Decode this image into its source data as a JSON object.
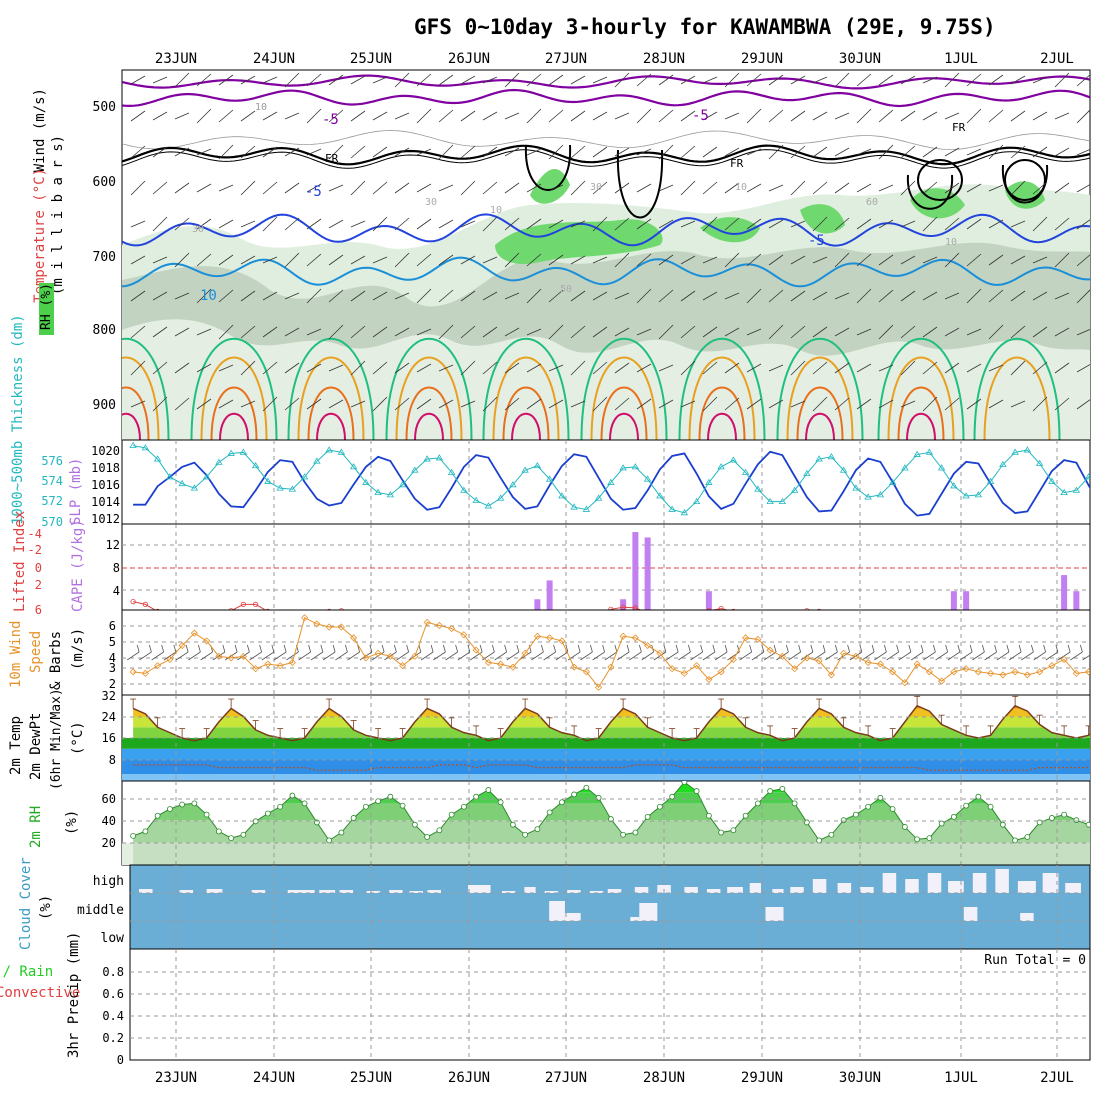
{
  "title": "GFS 0~10day 3-hourly for KAWAMBWA (29E, 9.75S)",
  "dates": [
    "23JUN",
    "24JUN",
    "25JUN",
    "26JUN",
    "27JUN",
    "28JUN",
    "29JUN",
    "30JUN",
    "1JUL",
    "2JUL"
  ],
  "panels": {
    "upper": {
      "ylabel_mb": "(m i l l i b a r s)",
      "legend_temp": "Temperature (°C)",
      "legend_wind": "Wind (m/s)",
      "legend_rh": "RH (%)",
      "ticks": [
        "500",
        "600",
        "700",
        "800",
        "900"
      ],
      "contour_labels": [
        "-5",
        "-5",
        "-5",
        "-5",
        "10",
        "10",
        "FR",
        "FR",
        "FR",
        "30",
        "30",
        "10",
        "50",
        "60",
        "10",
        "30",
        "10"
      ]
    },
    "thickness": {
      "label_thick": "1000~500mb Thickness (dm)",
      "label_slp": "SLP (mb)",
      "ticks_left": [
        "576",
        "574",
        "572",
        "570"
      ],
      "ticks_right": [
        "1020",
        "1018",
        "1016",
        "1014",
        "1012"
      ]
    },
    "cape": {
      "label_li": "Lifted Index",
      "label_cape": "CAPE (J/kg)",
      "ticks_left": [
        "-4",
        "-2",
        "0",
        "2",
        "4",
        "6"
      ],
      "ticks_right": [
        "12",
        "8",
        "4"
      ]
    },
    "wind10": {
      "label_a": "10m Wind",
      "label_b": "Speed",
      "label_c": "& Barbs",
      "label_units": "(m/s)",
      "ticks": [
        "6",
        "5",
        "4",
        "3",
        "2"
      ]
    },
    "temp2m": {
      "label_a": "2m Temp",
      "label_b": "2m DewPt",
      "label_c": "(6hr Min/Max)",
      "label_units": "(°C)",
      "ticks": [
        "32",
        "24",
        "16",
        "8"
      ]
    },
    "rh2m": {
      "label_a": "2m RH",
      "label_units": "(%)",
      "ticks": [
        "60",
        "40",
        "20"
      ]
    },
    "cloud": {
      "label_a": "Cloud Cover",
      "label_units": "(%)",
      "levels": [
        "high",
        "middle",
        "low"
      ]
    },
    "precip": {
      "label_a": "Total / Rain",
      "label_b": "Convective",
      "label_c": "3hr Precip (mm)",
      "run_total": "Run Total = 0",
      "ticks": [
        "0.8",
        "0.6",
        "0.4",
        "0.2",
        "0"
      ]
    }
  },
  "chart_data": [
    {
      "type": "line",
      "title": "1000~500mb Thickness (dm) / SLP (mb)",
      "x_unit": "3-hourly steps from 22JUN 12Z",
      "series": [
        {
          "name": "SLP (mb)",
          "color": "#1a3fcf",
          "ylim": [
            1011,
            1021
          ],
          "values": [
            1013.3,
            1013.3,
            1015.5,
            1016.6,
            1017.8,
            1018.3,
            1016.8,
            1014.6,
            1013.1,
            1013.0,
            1015.0,
            1017.2,
            1018.6,
            1018.4,
            1016.0,
            1014.0,
            1013.2,
            1013.5,
            1015.7,
            1017.8,
            1019.0,
            1018.5,
            1016.2,
            1014.0,
            1012.7,
            1013.0,
            1015.3,
            1017.8,
            1019.2,
            1018.9,
            1016.5,
            1014.2,
            1012.8,
            1013.1,
            1015.6,
            1017.9,
            1019.3,
            1019.0,
            1016.5,
            1014.0,
            1012.7,
            1012.9,
            1015.0,
            1017.5,
            1019.1,
            1019.4,
            1017.0,
            1014.3,
            1012.8,
            1013.4,
            1015.8,
            1018.1,
            1019.6,
            1019.2,
            1016.7,
            1014.2,
            1012.5,
            1012.6,
            1014.9,
            1017.4,
            1018.8,
            1018.4,
            1016.0,
            1013.4,
            1012.0,
            1012.2,
            1014.6,
            1017.0,
            1018.4,
            1018.2,
            1015.8,
            1013.5,
            1012.3,
            1012.5,
            1014.9,
            1017.3,
            1018.6,
            1018.3,
            1015.6,
            1013.2,
            1012.3,
            1013.9,
            1015.9,
            1016.8,
            1018.6
          ]
        },
        {
          "name": "Thickness (dm)",
          "color": "#22b8c0",
          "ylim": [
            570,
            577.5
          ],
          "values": [
            577,
            576.8,
            575.8,
            574.2,
            573.6,
            573.2,
            574.2,
            575.5,
            576.3,
            576.4,
            575.2,
            573.8,
            573.2,
            573.1,
            574.2,
            575.6,
            576.6,
            576.4,
            575.1,
            573.7,
            572.8,
            572.6,
            573.5,
            574.8,
            575.8,
            575.9,
            574.6,
            573.0,
            572.1,
            571.6,
            572.3,
            573.5,
            574.8,
            575.2,
            574.0,
            572.5,
            571.5,
            571.3,
            572.3,
            573.7,
            575.0,
            575.1,
            574.0,
            572.5,
            571.3,
            571.0,
            572.0,
            573.7,
            575.1,
            575.7,
            574.6,
            573.1,
            572.0,
            572.0,
            573.0,
            574.5,
            575.8,
            576.0,
            574.8,
            573.2,
            572.4,
            572.6,
            573.7,
            575.0,
            576.2,
            576.4,
            575.0,
            573.4,
            572.5,
            572.6,
            573.8,
            575.3,
            576.4,
            576.6,
            575.4,
            573.8,
            572.8,
            573.0,
            574.2,
            575.6,
            576.5,
            576.3,
            574.8,
            573.3,
            574.0
          ]
        }
      ]
    },
    {
      "type": "bar",
      "title": "CAPE (J/kg)",
      "x_unit": "3-hourly steps from 22JUN 12Z",
      "step_values": [
        [
          33,
          2
        ],
        [
          34,
          5.5
        ],
        [
          40,
          2
        ],
        [
          41,
          14.5
        ],
        [
          42,
          13.5
        ],
        [
          47,
          3.5
        ],
        [
          67,
          3.5
        ],
        [
          68,
          3.5
        ],
        [
          76,
          6.5
        ],
        [
          77,
          3.5
        ]
      ],
      "ylim": [
        0,
        16
      ]
    },
    {
      "type": "line",
      "title": "Lifted Index",
      "x_unit": "3-hourly steps from 22JUN 12Z",
      "values": [
        4.8,
        5.2,
        6.2,
        6.5,
        6.6,
        6.6,
        6.5,
        6.4,
        6.1,
        5.2,
        5.2,
        6.2,
        6.6,
        6.6,
        6.5,
        6.4,
        6.2,
        6.1,
        6.5,
        6.6,
        6.6,
        6.6,
        6.6,
        6.5,
        6.6,
        6.6,
        6.6,
        6.6,
        6.6,
        6.6,
        6.6,
        6.6,
        6.5,
        6.3,
        6.3,
        6.5,
        6.6,
        6.6,
        6.6,
        5.9,
        5.6,
        5.7,
        6.4,
        6.6,
        6.6,
        6.6,
        6.6,
        6.1,
        5.8,
        6.2,
        6.6,
        6.6,
        6.6,
        6.6,
        6.6,
        6.1,
        6.2,
        6.6,
        6.6,
        6.6,
        6.6,
        6.6,
        6.6,
        6.6,
        6.6,
        6.6,
        6.6,
        6.6,
        6.6,
        6.6,
        6.6,
        6.6,
        6.6,
        6.6,
        6.6,
        6.6,
        6.6,
        6.6,
        6.6,
        6.6,
        6.6,
        6.6,
        6.6,
        6.6,
        6.6
      ],
      "ylim": [
        -6,
        6
      ]
    },
    {
      "type": "line",
      "title": "10m Wind Speed (m/s)",
      "x_unit": "3-hourly steps from 22JUN 12Z",
      "values": [
        3.0,
        2.9,
        3.4,
        3.8,
        4.7,
        5.5,
        5.0,
        4.0,
        3.9,
        4.0,
        3.2,
        3.5,
        3.4,
        3.6,
        6.5,
        6.1,
        5.9,
        5.9,
        5.2,
        3.9,
        4.2,
        4.0,
        3.4,
        4.0,
        6.2,
        6.0,
        5.8,
        5.4,
        4.4,
        3.6,
        3.5,
        3.3,
        4.2,
        5.3,
        5.2,
        5.0,
        3.3,
        3.0,
        2.0,
        3.3,
        5.3,
        5.2,
        4.7,
        4.2,
        3.2,
        2.9,
        3.4,
        2.5,
        3.0,
        3.8,
        5.2,
        5.1,
        4.4,
        4.0,
        3.2,
        3.9,
        3.7,
        2.8,
        4.2,
        4.0,
        3.6,
        3.5,
        3.0,
        2.3,
        3.5,
        3.0,
        2.4,
        3.0,
        3.2,
        3.0,
        2.9,
        2.8,
        3.0,
        2.8,
        3.0,
        3.4,
        3.8,
        2.9,
        3.0,
        2.7,
        2.6,
        2.6,
        4.0,
        3.9,
        3.8
      ],
      "ylim": [
        1.5,
        7
      ]
    },
    {
      "type": "area",
      "title": "2m Temp (°C)",
      "x_unit": "3-hourly steps from 22JUN 12Z",
      "values": [
        27,
        25,
        20,
        18,
        16,
        15,
        16,
        22,
        27,
        24,
        19,
        17,
        16,
        15,
        16,
        22,
        27,
        24,
        19,
        17,
        16,
        15,
        16,
        22,
        27,
        25,
        20,
        18,
        17,
        15,
        16,
        22,
        27,
        25,
        20,
        18,
        17,
        15,
        16,
        22,
        27,
        25,
        20,
        18,
        16,
        15,
        16,
        22,
        27,
        25,
        20,
        18,
        17,
        15,
        16,
        22,
        27,
        25,
        20,
        18,
        17,
        15,
        16,
        22,
        28,
        26,
        21,
        19,
        17,
        16,
        17,
        23,
        28,
        26,
        21,
        18,
        17,
        16,
        17,
        23,
        28,
        26,
        21,
        18,
        18
      ],
      "dewpoint": [
        6,
        6,
        6,
        6,
        6,
        6,
        6,
        5,
        5,
        5,
        5,
        5,
        5,
        5,
        5,
        4,
        4,
        4,
        4,
        4,
        5,
        5,
        5,
        5,
        5,
        6,
        6,
        6,
        5,
        6,
        6,
        6,
        6,
        5,
        5,
        5,
        5,
        5,
        5,
        5,
        5,
        6,
        6,
        6,
        6,
        5,
        5,
        5,
        5,
        5,
        5,
        5,
        5,
        5,
        5,
        5,
        5,
        5,
        5,
        5,
        5,
        5,
        5,
        5,
        5,
        4,
        4,
        4,
        4,
        4,
        4,
        4,
        4,
        4,
        5,
        5,
        5,
        5,
        5,
        5,
        5,
        5,
        5,
        5,
        5
      ],
      "ylim": [
        0,
        32
      ]
    },
    {
      "type": "area",
      "title": "2m RH (%)",
      "x_unit": "3-hourly steps from 22JUN 12Z",
      "values": [
        26,
        30,
        44,
        50,
        54,
        55,
        45,
        30,
        24,
        27,
        39,
        46,
        52,
        62,
        55,
        38,
        22,
        29,
        42,
        52,
        57,
        61,
        53,
        36,
        25,
        31,
        45,
        52,
        61,
        67,
        56,
        36,
        27,
        32,
        47,
        56,
        63,
        69,
        60,
        41,
        27,
        29,
        43,
        52,
        61,
        74,
        66,
        44,
        29,
        31,
        44,
        55,
        66,
        68,
        55,
        38,
        22,
        27,
        40,
        45,
        52,
        60,
        50,
        34,
        23,
        24,
        37,
        43,
        53,
        61,
        52,
        36,
        22,
        25,
        38,
        42,
        45,
        40,
        36,
        25,
        34,
        39,
        42,
        50,
        42
      ],
      "ylim": [
        0,
        75
      ]
    },
    {
      "type": "bar",
      "title": "3hr Precip (mm)",
      "values": [],
      "ylim": [
        0,
        1
      ]
    }
  ]
}
